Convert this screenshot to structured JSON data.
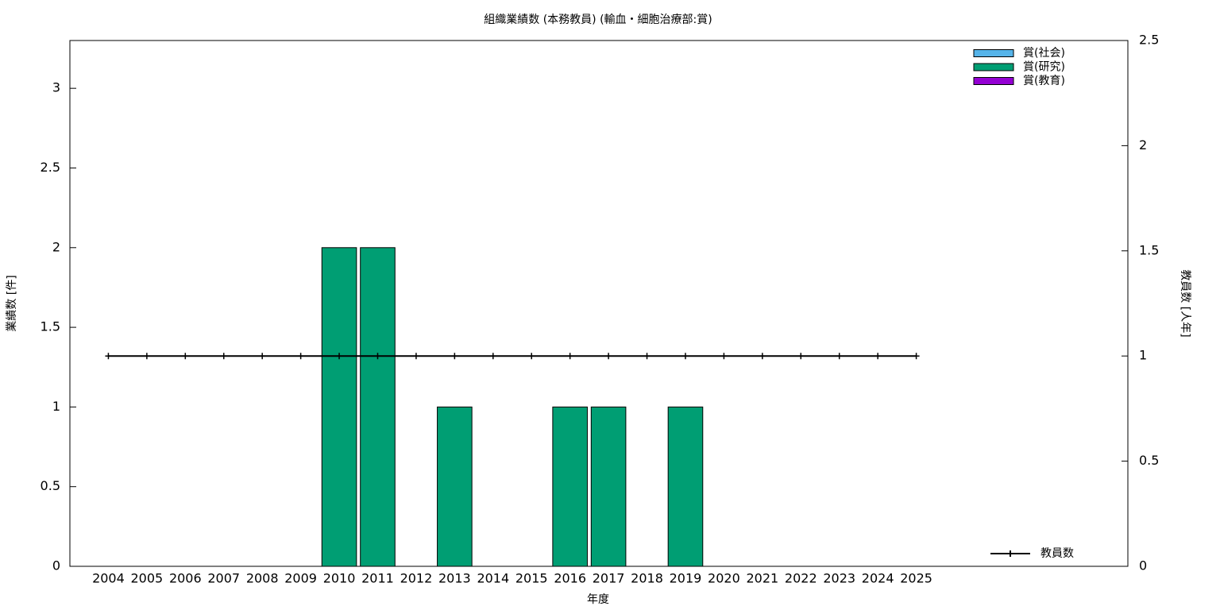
{
  "chart_data": {
    "type": "bar",
    "title": "組織業績数 (本務教員) (輸血・細胞治療部:賞)",
    "x_label": "年度",
    "y_label": "業績数 [件]",
    "y2_label": "教員数 [人年]",
    "stacked": true,
    "categories": [
      "2004",
      "2005",
      "2006",
      "2007",
      "2008",
      "2009",
      "2010",
      "2011",
      "2012",
      "2013",
      "2014",
      "2015",
      "2016",
      "2017",
      "2018",
      "2019",
      "2020",
      "2021",
      "2022",
      "2023",
      "2024",
      "2025"
    ],
    "series": [
      {
        "name": "賞(社会)",
        "color": "#56b4e9",
        "values": [
          0,
          0,
          0,
          0,
          0,
          0,
          0,
          0,
          0,
          0,
          0,
          0,
          0,
          0,
          0,
          0,
          0,
          0,
          0,
          0,
          0,
          0
        ]
      },
      {
        "name": "賞(研究)",
        "color": "#009e73",
        "values": [
          0,
          0,
          0,
          0,
          0,
          0,
          2,
          2,
          0,
          1,
          0,
          0,
          1,
          1,
          0,
          1,
          0,
          0,
          0,
          0,
          0,
          0
        ]
      },
      {
        "name": "賞(教育)",
        "color": "#9400d3",
        "values": [
          0,
          0,
          0,
          0,
          0,
          0,
          0,
          0,
          0,
          0,
          0,
          0,
          0,
          0,
          0,
          0,
          0,
          0,
          0,
          0,
          0,
          0
        ]
      },
      {
        "name": "教員数",
        "color": "#000000",
        "type": "line",
        "axis": "y2",
        "values": [
          1,
          1,
          1,
          1,
          1,
          1,
          1,
          1,
          1,
          1,
          1,
          1,
          1,
          1,
          1,
          1,
          1,
          1,
          1,
          1,
          1,
          1
        ]
      }
    ],
    "ylim": [
      0,
      3.3
    ],
    "yticks": [
      0,
      0.5,
      1,
      1.5,
      2,
      2.5,
      3
    ],
    "y2lim": [
      0,
      2.5
    ],
    "y2ticks": [
      0,
      0.5,
      1,
      1.5,
      2,
      2.5
    ],
    "grid": false
  }
}
